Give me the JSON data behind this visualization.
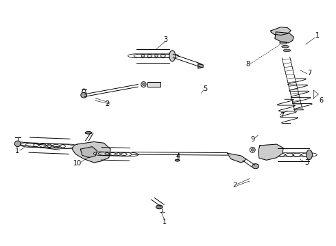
{
  "title": "",
  "background_color": "#ffffff",
  "fig_width": 4.9,
  "fig_height": 3.6,
  "dpi": 100,
  "line_color": "#000000",
  "line_width": 0.7
}
